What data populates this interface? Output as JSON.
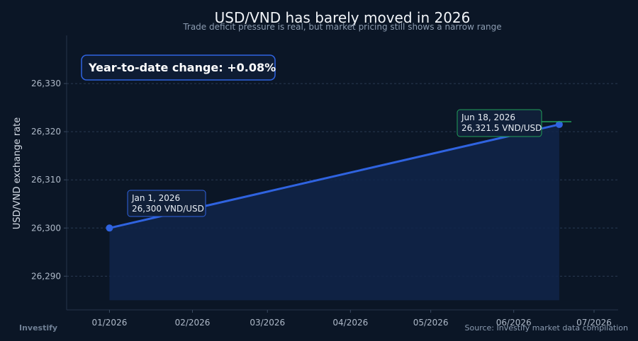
{
  "chart_data": {
    "type": "line",
    "title": "USD/VND has barely moved in 2026",
    "subtitle": "Trade deficit pressure is real, but market pricing still shows a narrow range",
    "ylabel": "USD/VND exchange rate",
    "xlabel": "",
    "x_ticks": [
      "01/2026",
      "02/2026",
      "03/2026",
      "04/2026",
      "05/2026",
      "06/2026",
      "07/2026"
    ],
    "x_tick_dates": [
      "2026-01-01",
      "2026-02-01",
      "2026-03-01",
      "2026-04-01",
      "2026-05-01",
      "2026-06-01",
      "2026-07-01"
    ],
    "y_ticks": [
      26290,
      26300,
      26310,
      26320,
      26330
    ],
    "y_tick_labels": [
      "26,290",
      "26,300",
      "26,310",
      "26,320",
      "26,330"
    ],
    "xlim": [
      "2025-12-16",
      "2026-07-10"
    ],
    "ylim": [
      26283,
      26340
    ],
    "grid": true,
    "series": [
      {
        "name": "",
        "color": "#2f63e0",
        "points": [
          {
            "x": "2026-01-01",
            "y": 26300
          },
          {
            "x": "2026-06-18",
            "y": 26321.5
          }
        ]
      }
    ],
    "annotations": [
      {
        "date_label": "Jan 1, 2026",
        "value_label": "26,300 VND/USD",
        "border_color": "#2f63e0"
      },
      {
        "date_label": "Jun 18, 2026",
        "value_label": "26,321.5 VND/USD",
        "border_color": "#22a05a"
      }
    ],
    "badge": "Year-to-date change: +0.08%",
    "brand": "Investify",
    "source": "Source: Investify market data compilation"
  }
}
